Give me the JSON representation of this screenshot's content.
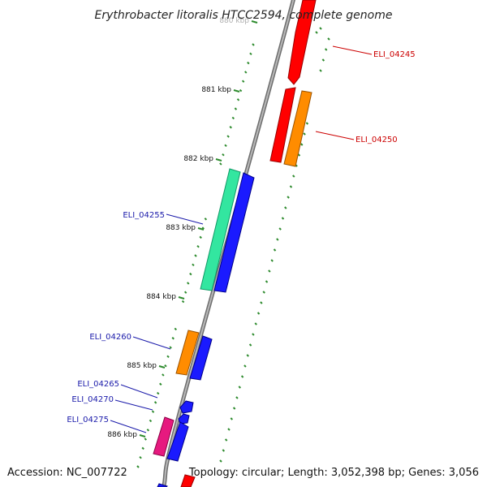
{
  "title": "Erythrobacter litoralis HTCC2594, complete genome",
  "footer": {
    "accession": "Accession: NC_007722",
    "topology": "Topology: circular; Length: 3,052,398 bp; Genes: 3,056"
  },
  "colors": {
    "backbone": "#8c8c8c",
    "tick": "#2e8b2e",
    "label_red": "#cc0000",
    "label_blue": "#1a1aaa",
    "gene_red": "#ff0000",
    "gene_orange": "#ff8c00",
    "gene_green": "#33e6a0",
    "gene_blue": "#1a1aff",
    "gene_pink": "#e6197f"
  },
  "ticks": [
    {
      "label": "880 kbp",
      "pos_kbp": 880
    },
    {
      "label": "881 kbp",
      "pos_kbp": 881
    },
    {
      "label": "882 kbp",
      "pos_kbp": 882
    },
    {
      "label": "883 kbp",
      "pos_kbp": 883
    },
    {
      "label": "884 kbp",
      "pos_kbp": 884
    },
    {
      "label": "885 kbp",
      "pos_kbp": 885
    },
    {
      "label": "886 kbp",
      "pos_kbp": 886
    }
  ],
  "labeled_genes": [
    {
      "label": "ELI_04245",
      "strand": "plus"
    },
    {
      "label": "ELI_04250",
      "strand": "plus"
    },
    {
      "label": "ELI_04255",
      "strand": "minus"
    },
    {
      "label": "ELI_04260",
      "strand": "minus"
    },
    {
      "label": "ELI_04265",
      "strand": "minus"
    },
    {
      "label": "ELI_04270",
      "strand": "minus"
    },
    {
      "label": "ELI_04275",
      "strand": "minus"
    }
  ]
}
